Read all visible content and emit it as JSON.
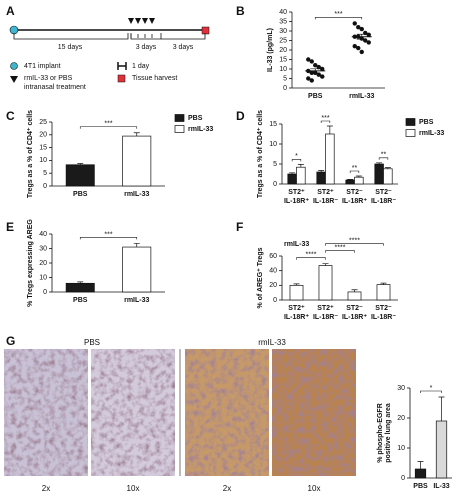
{
  "panel_labels": [
    "A",
    "B",
    "C",
    "D",
    "E",
    "F",
    "G"
  ],
  "timeline": {
    "intervals": [
      "15 days",
      "3 days",
      "3 days"
    ],
    "legend": {
      "implant": "4T1 implant",
      "treatment": [
        "rmIL-33 or PBS",
        "intranasal treatment"
      ],
      "day": "1 day",
      "harvest": "Tissue harvest"
    }
  },
  "images": {
    "groups": [
      "PBS",
      "rmIL-33"
    ],
    "magnifications": [
      "2x",
      "10x",
      "2x",
      "10x"
    ]
  },
  "chart_data": [
    {
      "type": "scatter",
      "ylabel": "IL-33 (pg/mL)",
      "categories": [
        "PBS",
        "rmIL-33"
      ],
      "series": [
        {
          "name": "PBS",
          "color": "#111111",
          "values": [
            15,
            14,
            12,
            11,
            10,
            9,
            8,
            8,
            7,
            6,
            5,
            4
          ],
          "mean": 9,
          "sem": 1.1
        },
        {
          "name": "rmIL-33",
          "color": "#111111",
          "values": [
            34,
            32,
            31,
            29,
            28,
            27,
            27,
            26,
            25,
            24,
            22,
            21,
            19
          ],
          "mean": 27,
          "sem": 1.3
        }
      ],
      "ylim": [
        0,
        40
      ],
      "yticks": [
        0,
        5,
        10,
        15,
        20,
        25,
        30,
        35,
        40
      ],
      "significance": [
        {
          "from": 0,
          "to": 1,
          "label": "***"
        }
      ]
    },
    {
      "type": "bar",
      "ylabel": "Tregs as a % of CD4⁺ cells",
      "categories": [
        "PBS",
        "rmIL-33"
      ],
      "values": [
        8.3,
        19.5
      ],
      "errors": [
        0.5,
        1.3
      ],
      "colors": [
        "#1a1a1a",
        "#ffffff"
      ],
      "legend": [
        {
          "name": "PBS",
          "color": "#1a1a1a"
        },
        {
          "name": "rmIL-33",
          "color": "#ffffff"
        }
      ],
      "ylim": [
        0,
        25
      ],
      "yticks": [
        0,
        5,
        10,
        15,
        20,
        25
      ],
      "significance": [
        {
          "from": 0,
          "to": 1,
          "label": "***"
        }
      ]
    },
    {
      "type": "bar",
      "ylabel": "Tregs as a % of CD4⁺ cells",
      "categories": [
        [
          "ST2⁺",
          "IL-18R⁺"
        ],
        [
          "ST2⁺",
          "IL-18R⁻"
        ],
        [
          "ST2⁻",
          "IL-18R⁺"
        ],
        [
          "ST2⁻",
          "IL-18R⁻"
        ]
      ],
      "series": [
        {
          "name": "PBS",
          "color": "#1a1a1a",
          "values": [
            2.5,
            3,
            1,
            5
          ],
          "errors": [
            0.3,
            0.4,
            0.15,
            0.3
          ]
        },
        {
          "name": "rmIL-33",
          "color": "#ffffff",
          "values": [
            4.2,
            12.5,
            1.7,
            3.8
          ],
          "errors": [
            0.7,
            2,
            0.3,
            0.3
          ]
        }
      ],
      "ylim": [
        0,
        15
      ],
      "yticks": [
        0,
        5,
        10,
        15
      ],
      "significance": [
        {
          "category": 0,
          "label": "*"
        },
        {
          "category": 1,
          "label": "***"
        },
        {
          "category": 2,
          "label": "**"
        },
        {
          "category": 3,
          "label": "**"
        }
      ]
    },
    {
      "type": "bar",
      "ylabel": "% Tregs expressing AREG",
      "categories": [
        "PBS",
        "rmIL-33"
      ],
      "values": [
        6,
        31
      ],
      "errors": [
        1,
        2.5
      ],
      "colors": [
        "#1a1a1a",
        "#ffffff"
      ],
      "ylim": [
        0,
        40
      ],
      "yticks": [
        0,
        10,
        20,
        30,
        40
      ],
      "significance": [
        {
          "from": 0,
          "to": 1,
          "label": "***"
        }
      ]
    },
    {
      "type": "bar",
      "title": "rmIL-33",
      "ylabel": "% of AREG⁺ Tregs",
      "categories": [
        [
          "ST2⁺",
          "IL-18R⁺"
        ],
        [
          "ST2⁺",
          "IL-18R⁻"
        ],
        [
          "ST2⁻",
          "IL-18R⁺"
        ],
        [
          "ST2⁻",
          "IL-18R⁻"
        ]
      ],
      "values": [
        20,
        47,
        11,
        21
      ],
      "errors": [
        2,
        2.5,
        3,
        2
      ],
      "colors": [
        "#ffffff",
        "#ffffff",
        "#ffffff",
        "#ffffff"
      ],
      "ylim": [
        0,
        60
      ],
      "yticks": [
        0,
        20,
        40,
        60
      ],
      "significance": [
        {
          "from": 0,
          "to": 1,
          "label": "****"
        },
        {
          "from": 1,
          "to": 2,
          "label": "****"
        },
        {
          "from": 1,
          "to": 3,
          "label": "****"
        }
      ]
    },
    {
      "type": "bar",
      "ylabel": [
        "% phospho-EGFR",
        "positive lung area"
      ],
      "categories": [
        "PBS",
        "IL-33"
      ],
      "values": [
        3,
        19
      ],
      "errors": [
        2.5,
        8
      ],
      "colors": [
        "#1a1a1a",
        "#d9d9d9"
      ],
      "ylim": [
        0,
        30
      ],
      "yticks": [
        0,
        10,
        20,
        30
      ],
      "significance": [
        {
          "from": 0,
          "to": 1,
          "label": "*"
        }
      ]
    }
  ]
}
